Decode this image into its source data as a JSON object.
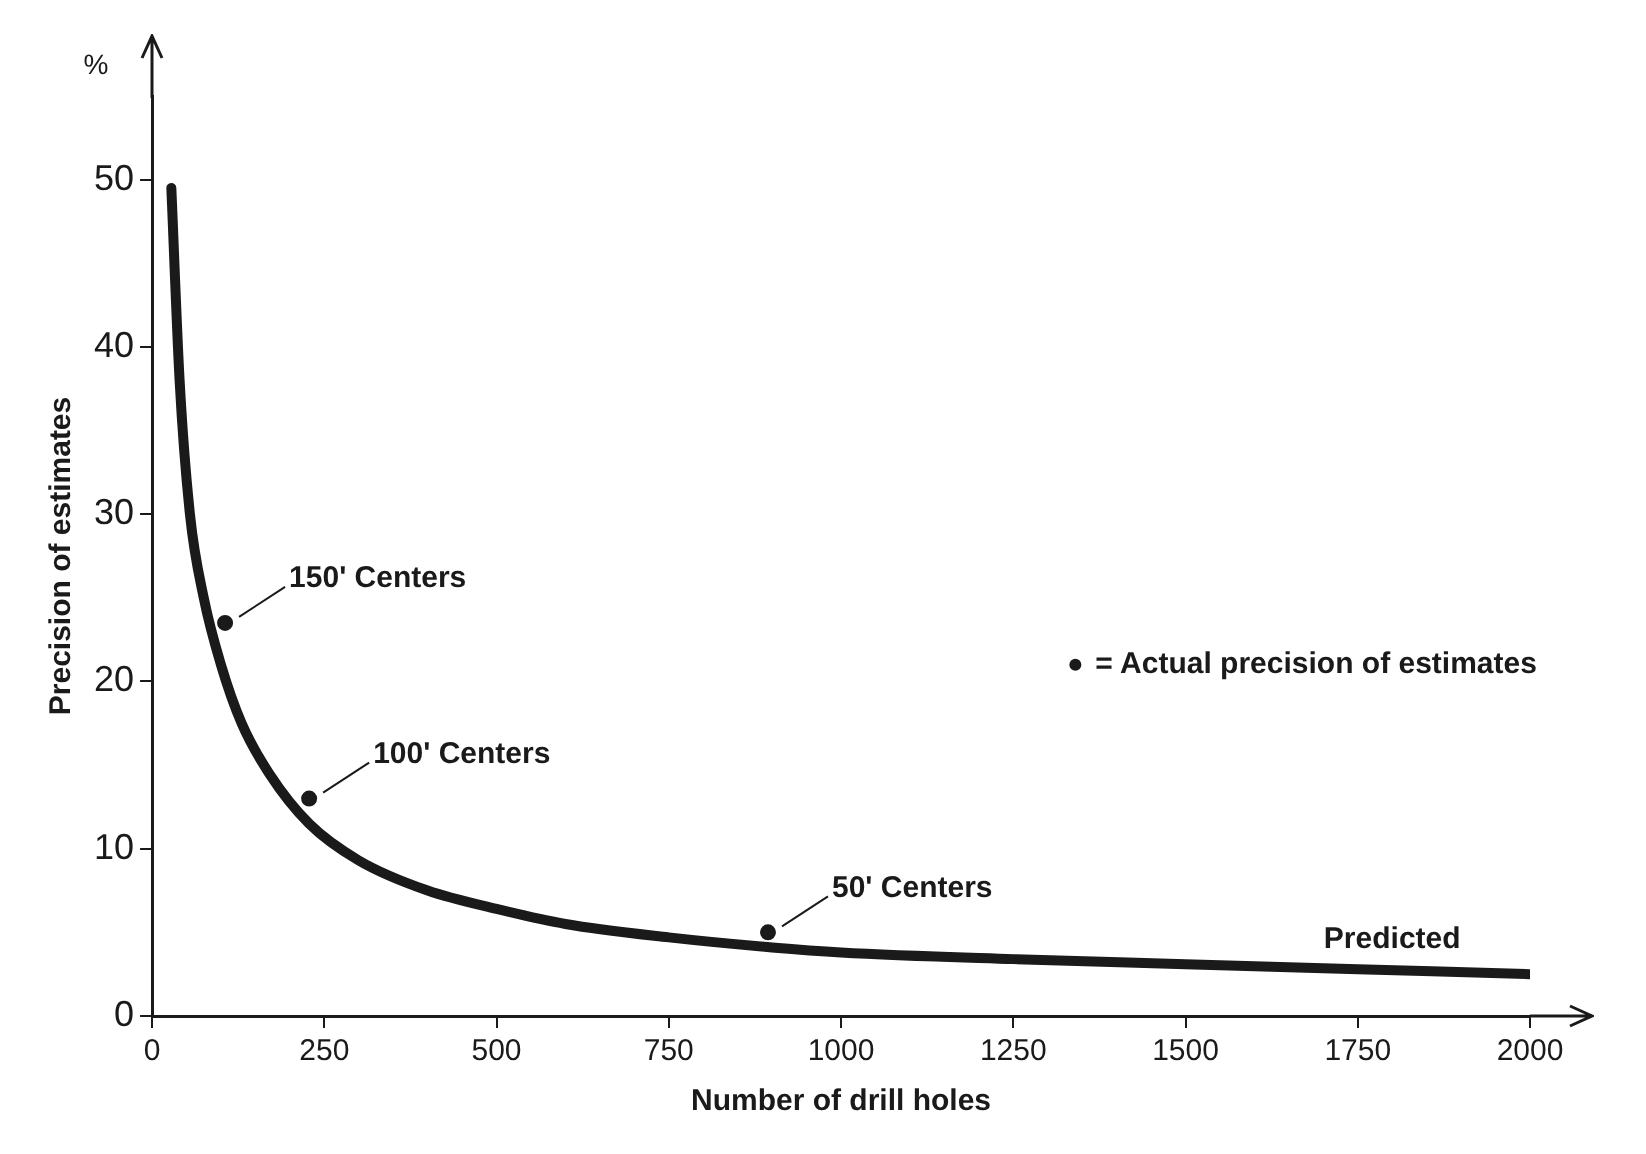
{
  "chart_data": {
    "type": "line",
    "xlabel": "Number of drill holes",
    "ylabel": "Precision of estimates",
    "x": [
      28,
      40,
      55,
      75,
      100,
      130,
      170,
      228,
      300,
      400,
      500,
      600,
      750,
      900,
      1000,
      1250,
      1500,
      1750,
      2000
    ],
    "series": [
      {
        "color": "#1a1a1a",
        "marker": "none",
        "line_style": "solid",
        "values": [
          49.5,
          38,
          30,
          25,
          21,
          17.5,
          14.5,
          11.5,
          9.3,
          7.5,
          6.4,
          5.5,
          4.7,
          4.1,
          3.8,
          3.4,
          3.1,
          2.8,
          2.5
        ]
      },
      {
        "type": "scatter",
        "name": "= Actual precision of estimates",
        "color": "#1a1a1a",
        "marker": "circle",
        "x": [
          106,
          228,
          894
        ],
        "values": [
          23.5,
          13,
          5
        ]
      }
    ],
    "xlim": [
      0,
      2000
    ],
    "xticks": [
      0,
      250,
      500,
      750,
      1000,
      1250,
      1500,
      1750,
      2000
    ],
    "ylim": [
      0,
      55
    ],
    "yticks": [
      0,
      10,
      20,
      30,
      40,
      50
    ],
    "grid": false,
    "legend": "right",
    "annotations": [
      "%",
      {
        "text": "150' Centers",
        "x": 106,
        "y": 23.5
      },
      {
        "text": "100' Centers",
        "x": 228,
        "y": 13
      },
      {
        "text": "50' Centers",
        "x": 894,
        "y": 5
      },
      {
        "text": "Predicted",
        "x": 1800,
        "y": 2.7
      }
    ]
  }
}
